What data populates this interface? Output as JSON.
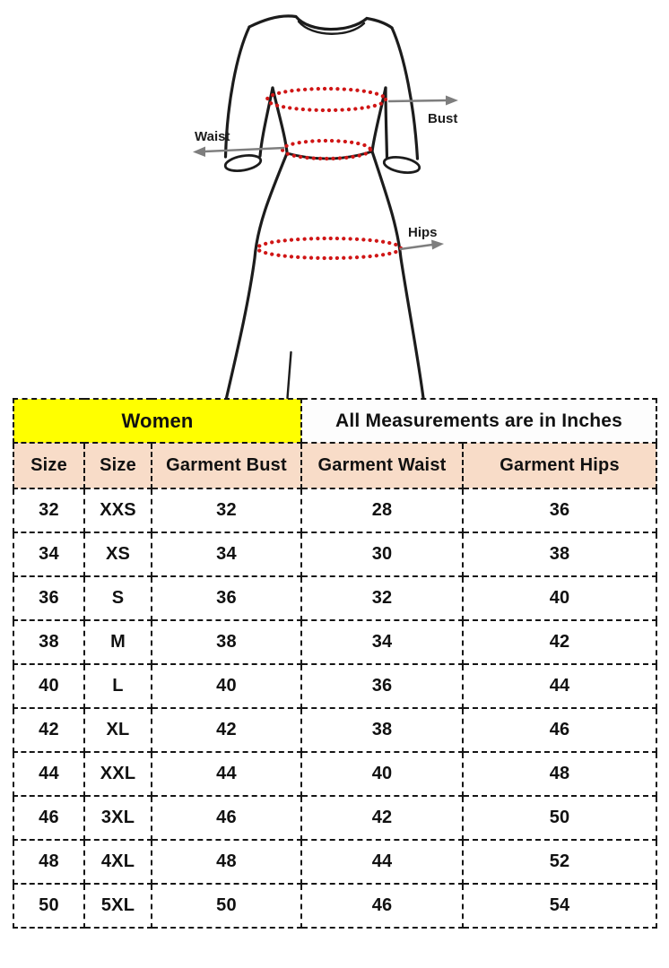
{
  "diagram": {
    "labels": {
      "bust": "Bust",
      "waist": "Waist",
      "hips": "Hips"
    },
    "colors": {
      "garment_outline": "#1c1c1c",
      "measure_dots": "#d01616",
      "arrow": "#7e7e7e",
      "label_text": "#1c1c1c"
    }
  },
  "table": {
    "header": {
      "women_label": "Women",
      "measurements_label": "All Measurements are in Inches",
      "women_bg": "#ffff00",
      "column_header_bg": "#f8dcc8"
    },
    "columns": [
      "Size",
      "Size",
      "Garment Bust",
      "Garment Waist",
      "Garment Hips"
    ],
    "rows": [
      [
        "32",
        "XXS",
        "32",
        "28",
        "36"
      ],
      [
        "34",
        "XS",
        "34",
        "30",
        "38"
      ],
      [
        "36",
        "S",
        "36",
        "32",
        "40"
      ],
      [
        "38",
        "M",
        "38",
        "34",
        "42"
      ],
      [
        "40",
        "L",
        "40",
        "36",
        "44"
      ],
      [
        "42",
        "XL",
        "42",
        "38",
        "46"
      ],
      [
        "44",
        "XXL",
        "44",
        "40",
        "48"
      ],
      [
        "46",
        "3XL",
        "46",
        "42",
        "50"
      ],
      [
        "48",
        "4XL",
        "48",
        "44",
        "52"
      ],
      [
        "50",
        "5XL",
        "50",
        "46",
        "54"
      ]
    ]
  }
}
